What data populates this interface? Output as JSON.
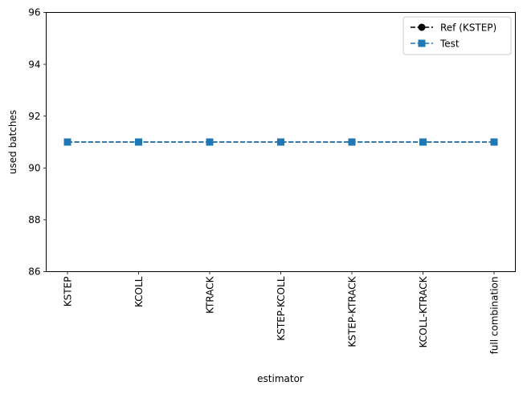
{
  "chart_data": {
    "type": "line",
    "title": "",
    "xlabel": "estimator",
    "ylabel": "used batches",
    "ylim": [
      86,
      96
    ],
    "yticks": [
      86,
      88,
      90,
      92,
      94,
      96
    ],
    "grid": false,
    "legend_placement": "top-right",
    "categories": [
      "KSTEP",
      "KCOLL",
      "KTRACK",
      "KSTEP-KCOLL",
      "KSTEP-KTRACK",
      "KCOLL-KTRACK",
      "full combination"
    ],
    "series": [
      {
        "name": "Ref (KSTEP)",
        "values": [
          91,
          91,
          91,
          91,
          91,
          91,
          91
        ],
        "color": "#000000",
        "marker": "circle",
        "linestyle": "dashed"
      },
      {
        "name": "Test",
        "values": [
          91,
          91,
          91,
          91,
          91,
          91,
          91
        ],
        "color": "#1f77b4",
        "marker": "square",
        "linestyle": "dashed"
      }
    ]
  }
}
